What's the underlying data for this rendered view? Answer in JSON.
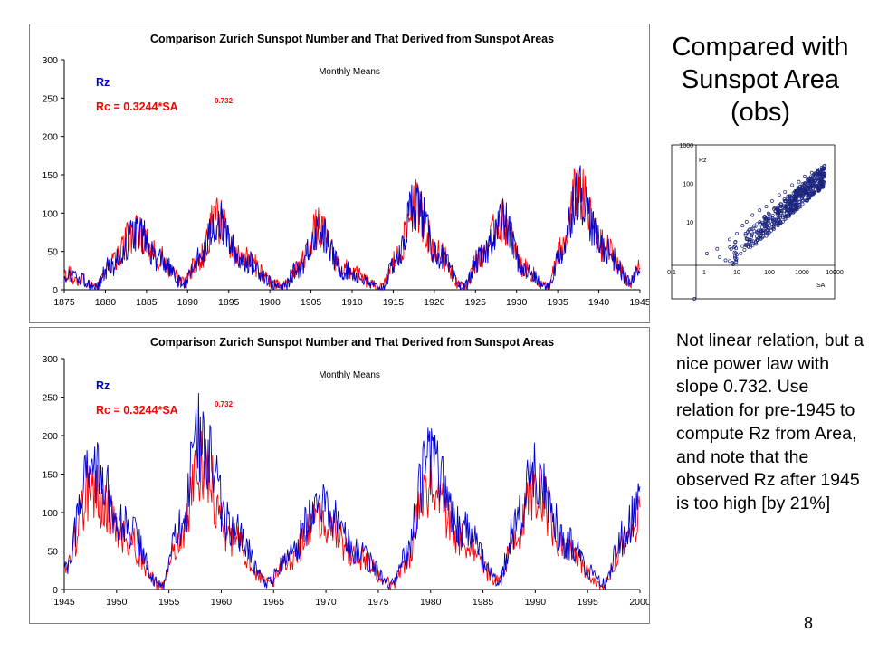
{
  "side_title": "Compared with Sunspot Area (obs)",
  "side_text": "Not linear relation, but a nice power law with slope 0.732. Use relation for pre-1945 to compute Rz from Area, and note that the observed Rz after 1945 is too high [by 21%]",
  "page_number": "8",
  "colors": {
    "rz": "#0000cc",
    "rc": "#ff0000",
    "scatter": "#1a237e",
    "frame": "#808080"
  },
  "chart_data": [
    {
      "type": "line",
      "title": "Comparison Zurich Sunspot Number and That Derived from Sunspot Areas",
      "subtitle": "Monthly Means",
      "legend": [
        "Rz",
        "Rc = 0.3244*SA",
        "0.732"
      ],
      "xlim": [
        1875,
        1945
      ],
      "ylim": [
        0,
        300
      ],
      "yticks": [
        0,
        50,
        100,
        150,
        200,
        250,
        300
      ],
      "xticks": [
        1875,
        1880,
        1885,
        1890,
        1895,
        1900,
        1905,
        1910,
        1915,
        1920,
        1925,
        1930,
        1935,
        1940,
        1945
      ],
      "series": [
        {
          "name": "Rz",
          "color": "#0000cc",
          "x": [
            1875.0,
            1876.5,
            1878.8,
            1880.5,
            1883.9,
            1886.5,
            1889.5,
            1891.5,
            1893.5,
            1896.5,
            1901.5,
            1903.5,
            1905.8,
            1909.0,
            1913.5,
            1915.5,
            1917.6,
            1920.5,
            1923.5,
            1925.5,
            1928.3,
            1931.0,
            1933.7,
            1935.5,
            1937.4,
            1940.5,
            1944.0,
            1945.0
          ],
          "y": [
            20,
            15,
            4,
            30,
            75,
            40,
            8,
            40,
            90,
            40,
            3,
            28,
            78,
            25,
            2,
            40,
            115,
            45,
            3,
            40,
            90,
            25,
            3,
            50,
            130,
            55,
            10,
            30
          ]
        },
        {
          "name": "Rc = 0.3244*SA",
          "color": "#ff0000",
          "x": [
            1875.0,
            1876.5,
            1878.8,
            1880.5,
            1883.9,
            1886.5,
            1889.5,
            1891.5,
            1893.5,
            1896.5,
            1901.5,
            1903.5,
            1905.8,
            1909.0,
            1913.5,
            1915.5,
            1917.6,
            1920.5,
            1923.5,
            1925.5,
            1928.3,
            1931.0,
            1933.7,
            1935.5,
            1937.4,
            1940.5,
            1944.0,
            1945.0
          ],
          "y": [
            22,
            16,
            5,
            32,
            78,
            42,
            9,
            42,
            92,
            42,
            4,
            30,
            80,
            27,
            3,
            42,
            110,
            47,
            4,
            42,
            90,
            27,
            4,
            52,
            128,
            57,
            11,
            32
          ]
        }
      ]
    },
    {
      "type": "line",
      "title": "Comparison Zurich Sunspot Number and That Derived from Sunspot Areas",
      "subtitle": "Monthly Means",
      "legend": [
        "Rz",
        "Rc = 0.3244*SA",
        "0.732"
      ],
      "xlim": [
        1945,
        2000
      ],
      "ylim": [
        0,
        300
      ],
      "yticks": [
        0,
        50,
        100,
        150,
        200,
        250,
        300
      ],
      "xticks": [
        1945,
        1950,
        1955,
        1960,
        1965,
        1970,
        1975,
        1980,
        1985,
        1990,
        1995,
        2000
      ],
      "series": [
        {
          "name": "Rz",
          "color": "#0000cc",
          "x": [
            1945.0,
            1947.5,
            1951.0,
            1954.3,
            1956.0,
            1958.0,
            1961.0,
            1964.5,
            1966.5,
            1969.5,
            1973.0,
            1976.3,
            1977.5,
            1979.8,
            1983.0,
            1986.5,
            1988.0,
            1990.0,
            1993.0,
            1996.5,
            1998.5,
            2000.0
          ],
          "y": [
            30,
            160,
            80,
            5,
            80,
            200,
            80,
            10,
            50,
            110,
            50,
            8,
            40,
            165,
            80,
            12,
            80,
            160,
            60,
            8,
            70,
            120
          ]
        },
        {
          "name": "Rc = 0.3244*SA",
          "color": "#ff0000",
          "x": [
            1945.0,
            1947.5,
            1951.0,
            1954.3,
            1956.0,
            1958.0,
            1961.0,
            1964.5,
            1966.5,
            1969.5,
            1973.0,
            1976.3,
            1977.5,
            1979.8,
            1983.0,
            1986.5,
            1988.0,
            1990.0,
            1993.0,
            1996.5,
            1998.5,
            2000.0
          ],
          "y": [
            25,
            130,
            65,
            4,
            65,
            165,
            65,
            8,
            42,
            90,
            42,
            7,
            33,
            135,
            65,
            10,
            65,
            130,
            50,
            7,
            58,
            100
          ]
        }
      ]
    },
    {
      "type": "scatter",
      "xscale": "log",
      "yscale": "log",
      "xlim": [
        0.1,
        10000
      ],
      "ylim": [
        0.1,
        1000
      ],
      "xticks": [
        "0.1",
        "1",
        "10",
        "100",
        "1000",
        "10000"
      ],
      "yticks": [
        "1000",
        "100",
        "10"
      ],
      "ylabel": "Rz",
      "xlabel": "SA",
      "x": [
        0.5,
        1.2,
        2.5,
        3.0,
        4.5,
        6.0,
        10,
        15,
        20,
        30,
        50,
        80,
        120,
        200,
        300,
        500,
        800,
        1200,
        2000,
        3000,
        4000,
        5000
      ],
      "y": [
        0.1,
        1.5,
        2.0,
        1.2,
        1.0,
        3.5,
        5,
        8,
        10,
        15,
        20,
        25,
        35,
        50,
        60,
        90,
        110,
        150,
        190,
        230,
        260,
        290
      ]
    }
  ]
}
